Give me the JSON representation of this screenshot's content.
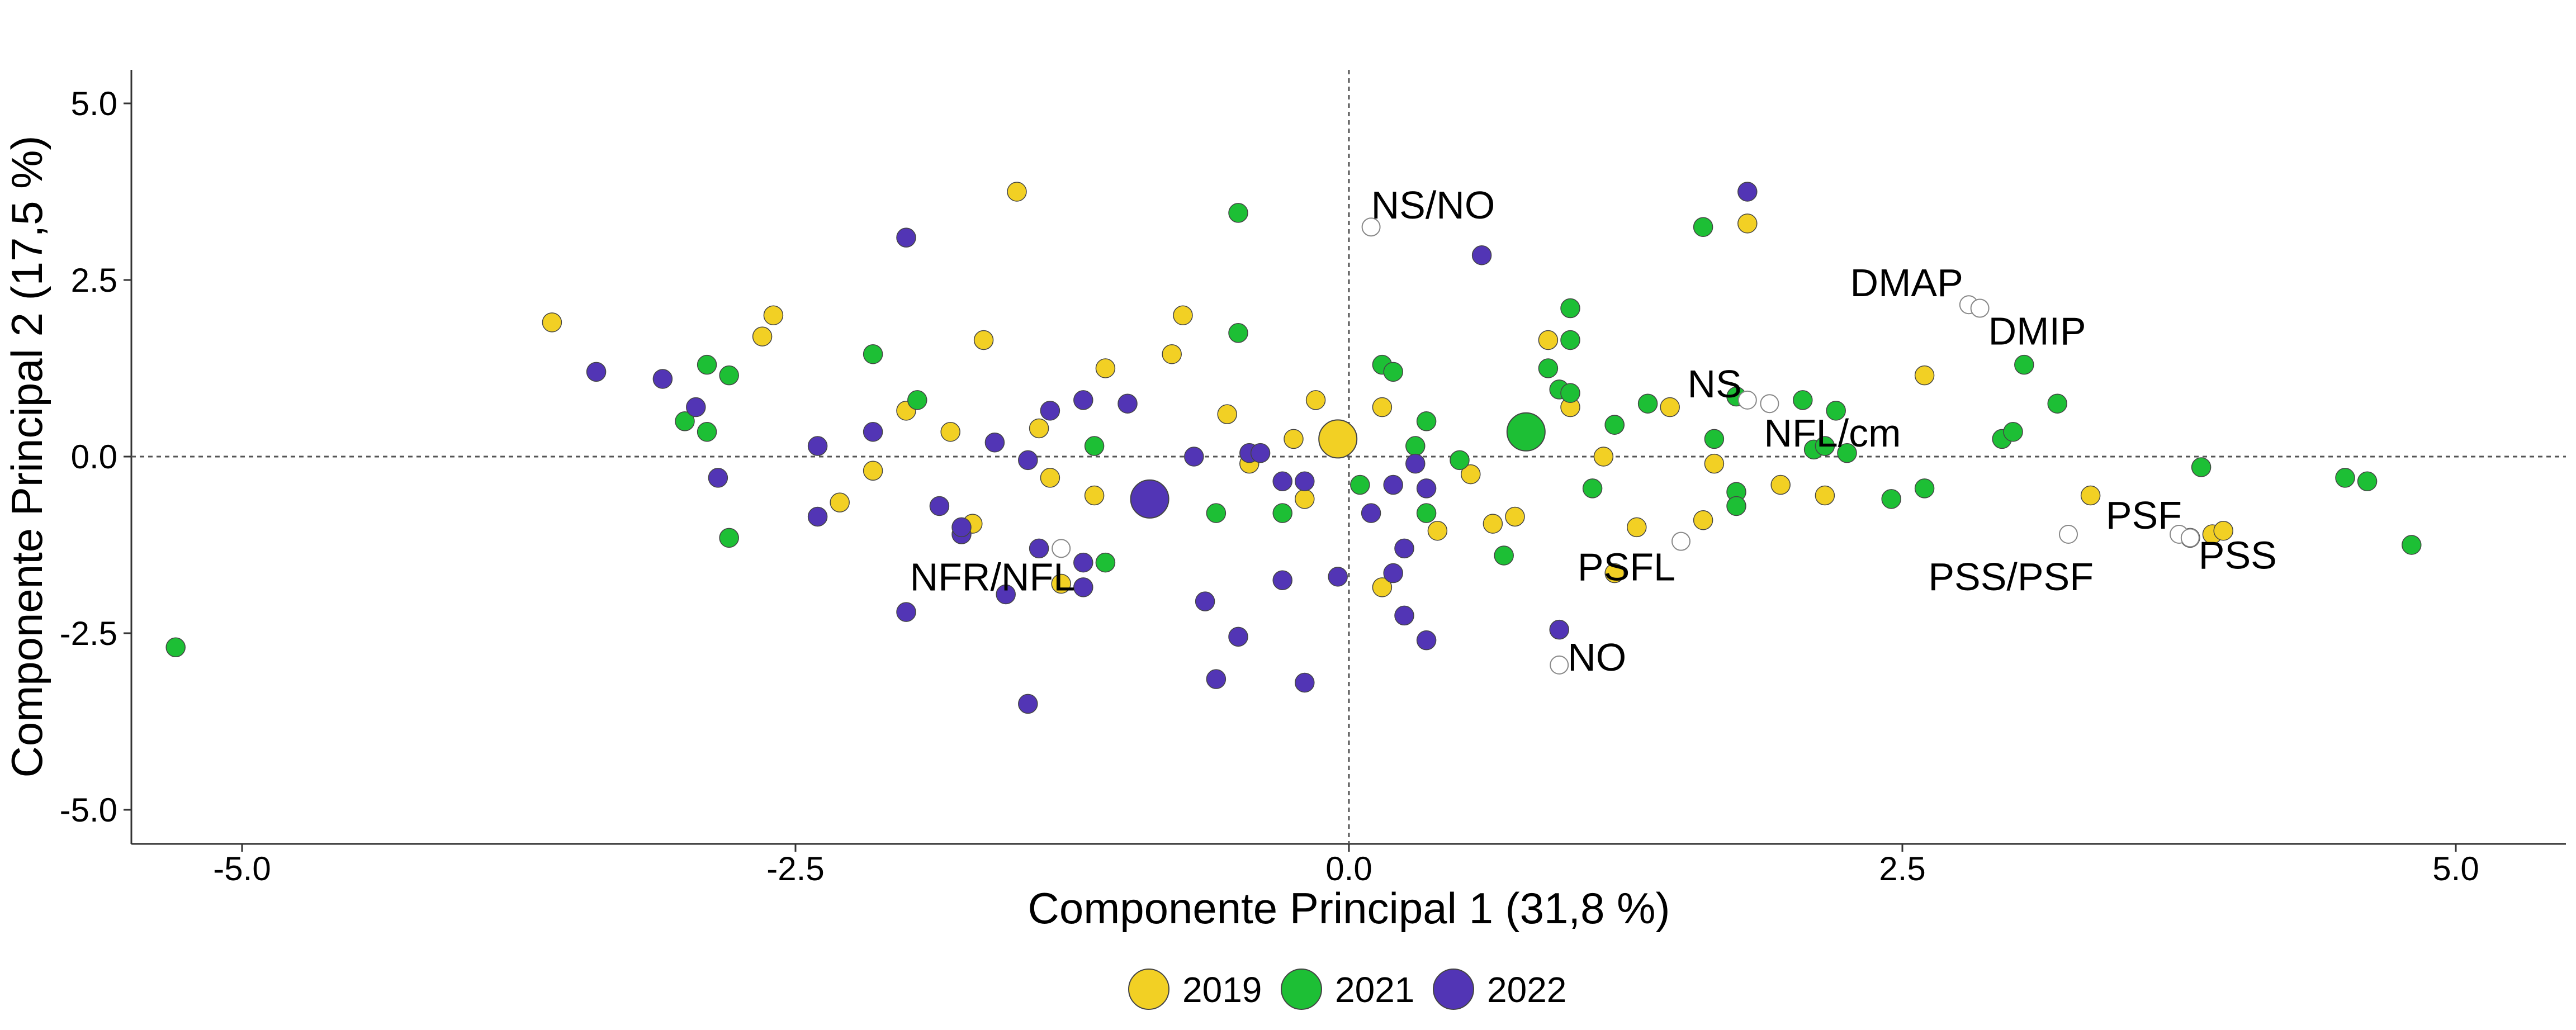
{
  "chart_data": {
    "type": "scatter",
    "title": "",
    "xlabel": "Componente Principal 1 (31,8 %)",
    "ylabel": "Componente Principal 2 (17,5 %)",
    "xlim": [
      -5.5,
      5.5
    ],
    "ylim": [
      -5.5,
      5.5
    ],
    "x_ticks": [
      -5.0,
      -2.5,
      0.0,
      2.5,
      5.0
    ],
    "x_tick_labels": [
      "-5.0",
      "-2.5",
      "0.0",
      "2.5",
      "5.0"
    ],
    "y_ticks": [
      -5.0,
      -2.5,
      0.0,
      2.5,
      5.0
    ],
    "y_tick_labels": [
      "-5.0",
      "-2.5",
      "0.0",
      "2.5",
      "5.0"
    ],
    "grid": false,
    "reference_lines": {
      "x": 0,
      "y": 0,
      "style": "dotted"
    },
    "legend_position": "bottom",
    "series": [
      {
        "name": "2019",
        "color": "#F2D024",
        "points": [
          [
            -3.6,
            1.9
          ],
          [
            -2.6,
            2.0
          ],
          [
            -2.65,
            1.7
          ],
          [
            -2.3,
            -0.65
          ],
          [
            -2.15,
            -0.2
          ],
          [
            -2.0,
            0.65
          ],
          [
            -1.8,
            0.35
          ],
          [
            -1.65,
            1.65
          ],
          [
            -1.5,
            3.75
          ],
          [
            -1.4,
            0.4
          ],
          [
            -1.35,
            -0.3
          ],
          [
            -1.3,
            -1.8
          ],
          [
            -1.15,
            -0.55
          ],
          [
            -1.1,
            1.25
          ],
          [
            -1.7,
            -0.95
          ],
          [
            -0.8,
            1.45
          ],
          [
            -0.75,
            2.0
          ],
          [
            -0.55,
            0.6
          ],
          [
            -0.45,
            -0.1
          ],
          [
            -0.25,
            0.25
          ],
          [
            -0.15,
            0.8
          ],
          [
            -0.2,
            -0.6
          ],
          [
            0.15,
            0.7
          ],
          [
            0.15,
            -1.85
          ],
          [
            0.4,
            -1.05
          ],
          [
            0.55,
            -0.25
          ],
          [
            0.65,
            -0.95
          ],
          [
            0.75,
            -0.85
          ],
          [
            0.9,
            1.65
          ],
          [
            1.0,
            0.7
          ],
          [
            1.15,
            0.0
          ],
          [
            1.2,
            -1.65
          ],
          [
            1.3,
            -1.0
          ],
          [
            1.45,
            0.7
          ],
          [
            1.6,
            -0.9
          ],
          [
            1.65,
            -0.1
          ],
          [
            1.8,
            3.3
          ],
          [
            1.95,
            -0.4
          ],
          [
            2.15,
            -0.55
          ],
          [
            2.6,
            1.15
          ],
          [
            3.35,
            -0.55
          ],
          [
            3.9,
            -1.1
          ],
          [
            3.95,
            -1.05
          ],
          [
            1.2,
            0.45
          ]
        ]
      },
      {
        "name": "2021",
        "color": "#1DBF35",
        "points": [
          [
            -5.3,
            -2.7
          ],
          [
            -3.0,
            0.5
          ],
          [
            -2.9,
            1.3
          ],
          [
            -2.9,
            0.35
          ],
          [
            -2.8,
            1.15
          ],
          [
            -2.8,
            -1.15
          ],
          [
            -2.15,
            1.45
          ],
          [
            -1.95,
            0.8
          ],
          [
            -1.15,
            0.15
          ],
          [
            -1.1,
            -1.5
          ],
          [
            -0.5,
            3.45
          ],
          [
            -0.5,
            1.75
          ],
          [
            -0.6,
            -0.8
          ],
          [
            -0.3,
            -0.8
          ],
          [
            0.05,
            -0.4
          ],
          [
            0.15,
            1.3
          ],
          [
            0.2,
            1.2
          ],
          [
            0.3,
            0.15
          ],
          [
            0.35,
            0.5
          ],
          [
            0.35,
            -0.8
          ],
          [
            0.5,
            -0.05
          ],
          [
            0.7,
            -1.4
          ],
          [
            0.9,
            1.25
          ],
          [
            0.95,
            0.95
          ],
          [
            1.0,
            2.1
          ],
          [
            1.0,
            1.65
          ],
          [
            1.0,
            0.9
          ],
          [
            1.1,
            -0.45
          ],
          [
            1.2,
            0.45
          ],
          [
            1.35,
            0.75
          ],
          [
            1.6,
            3.25
          ],
          [
            1.65,
            0.25
          ],
          [
            1.75,
            0.85
          ],
          [
            1.75,
            -0.5
          ],
          [
            1.75,
            -0.7
          ],
          [
            2.05,
            0.8
          ],
          [
            2.1,
            0.1
          ],
          [
            2.15,
            0.15
          ],
          [
            2.2,
            0.65
          ],
          [
            2.25,
            0.05
          ],
          [
            2.45,
            -0.6
          ],
          [
            2.6,
            -0.45
          ],
          [
            2.95,
            0.25
          ],
          [
            3.0,
            0.35
          ],
          [
            3.05,
            1.3
          ],
          [
            3.2,
            0.75
          ],
          [
            3.8,
            -1.15
          ],
          [
            3.85,
            -0.15
          ],
          [
            4.5,
            -0.3
          ],
          [
            4.6,
            -0.35
          ],
          [
            4.8,
            -1.25
          ]
        ]
      },
      {
        "name": "2022",
        "color": "#5235B5",
        "points": [
          [
            -3.4,
            1.2
          ],
          [
            -3.1,
            1.1
          ],
          [
            -2.95,
            0.7
          ],
          [
            -2.85,
            -0.3
          ],
          [
            -2.4,
            0.15
          ],
          [
            -2.4,
            -0.85
          ],
          [
            -2.15,
            0.35
          ],
          [
            -2.0,
            3.1
          ],
          [
            -2.0,
            -2.2
          ],
          [
            -1.85,
            -0.7
          ],
          [
            -1.75,
            -1.1
          ],
          [
            -1.75,
            -1.0
          ],
          [
            -1.6,
            0.2
          ],
          [
            -1.55,
            -1.95
          ],
          [
            -1.4,
            -1.3
          ],
          [
            -1.35,
            0.65
          ],
          [
            -1.2,
            -1.85
          ],
          [
            -1.2,
            0.8
          ],
          [
            -1.2,
            -1.5
          ],
          [
            -1.0,
            0.75
          ],
          [
            -0.7,
            0.0
          ],
          [
            -0.65,
            -2.05
          ],
          [
            -0.6,
            -3.15
          ],
          [
            -0.5,
            -2.55
          ],
          [
            -0.45,
            0.05
          ],
          [
            -0.4,
            0.05
          ],
          [
            -0.3,
            -0.35
          ],
          [
            -0.3,
            -1.75
          ],
          [
            -0.2,
            -0.35
          ],
          [
            -0.2,
            -3.2
          ],
          [
            -0.05,
            -1.7
          ],
          [
            0.1,
            -0.8
          ],
          [
            0.2,
            -1.65
          ],
          [
            0.2,
            -0.4
          ],
          [
            0.25,
            -2.25
          ],
          [
            0.25,
            -1.3
          ],
          [
            0.3,
            -0.1
          ],
          [
            0.35,
            -0.45
          ],
          [
            0.35,
            -2.6
          ],
          [
            0.6,
            2.85
          ],
          [
            0.95,
            -2.45
          ],
          [
            1.8,
            3.75
          ],
          [
            -1.45,
            -3.5
          ],
          [
            -1.45,
            -0.05
          ]
        ]
      },
      {
        "name": "2019 centroid",
        "color": "#F2D024",
        "centroid": true,
        "points": [
          [
            -0.05,
            0.25
          ]
        ]
      },
      {
        "name": "2021 centroid",
        "color": "#1DBF35",
        "centroid": true,
        "points": [
          [
            0.8,
            0.35
          ]
        ]
      },
      {
        "name": "2022 centroid",
        "color": "#5235B5",
        "centroid": true,
        "points": [
          [
            -0.9,
            -0.6
          ]
        ]
      }
    ],
    "variables": [
      {
        "name": "NS/NO",
        "x": 0.1,
        "y": 3.25
      },
      {
        "name": "DMAP",
        "x": 2.8,
        "y": 2.15
      },
      {
        "name": "DMIP",
        "x": 2.85,
        "y": 2.1
      },
      {
        "name": "NS",
        "x": 1.8,
        "y": 0.8
      },
      {
        "name": "NFL/cm",
        "x": 1.9,
        "y": 0.75
      },
      {
        "name": "PSFL",
        "x": 1.5,
        "y": -1.2
      },
      {
        "name": "NFR/NFL",
        "x": -1.3,
        "y": -1.3
      },
      {
        "name": "NO",
        "x": 0.95,
        "y": -2.95
      },
      {
        "name": "PSS/PSF",
        "x": 3.25,
        "y": -1.1
      },
      {
        "name": "PSF",
        "x": 3.75,
        "y": -1.1
      },
      {
        "name": "PSS",
        "x": 3.8,
        "y": -1.15
      }
    ],
    "legend": [
      "2019",
      "2021",
      "2022"
    ]
  }
}
